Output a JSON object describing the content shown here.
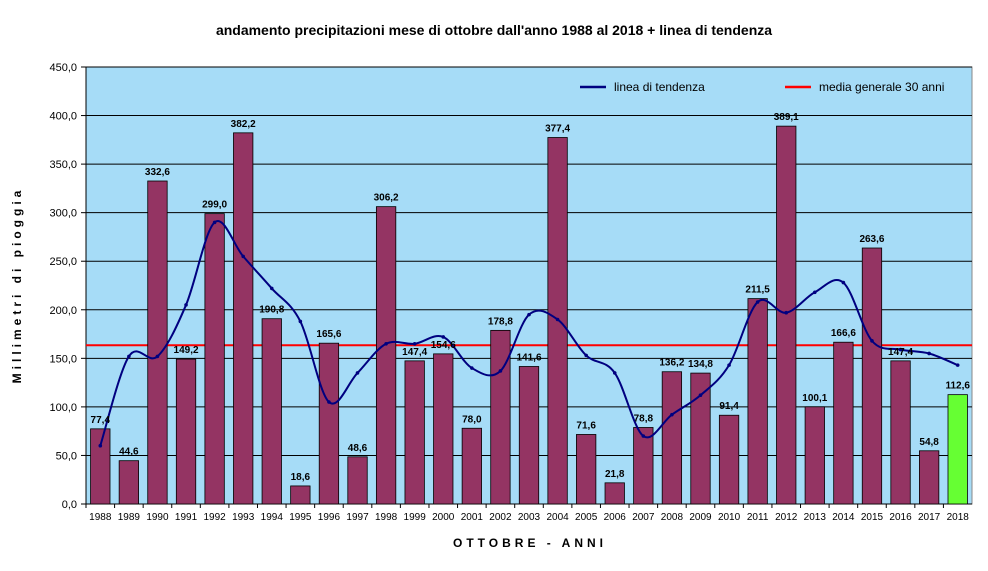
{
  "chart_data": {
    "type": "bar",
    "title": "andamento precipitazioni mese di ottobre dall'anno 1988 al 2018 + linea di tendenza",
    "xlabel": "OTTOBRE - ANNI",
    "ylabel": "Millimetri di pioggia",
    "ylim": [
      0,
      450
    ],
    "yticks": [
      "0,0",
      "50,0",
      "100,0",
      "150,0",
      "200,0",
      "250,0",
      "300,0",
      "350,0",
      "400,0",
      "450,0"
    ],
    "grid": true,
    "legend_position": "top-right",
    "categories": [
      "1988",
      "1989",
      "1990",
      "1991",
      "1992",
      "1993",
      "1994",
      "1995",
      "1996",
      "1997",
      "1998",
      "1999",
      "2000",
      "2001",
      "2002",
      "2003",
      "2004",
      "2005",
      "2006",
      "2007",
      "2008",
      "2009",
      "2010",
      "2011",
      "2012",
      "2013",
      "2014",
      "2015",
      "2016",
      "2017",
      "2018"
    ],
    "values": [
      77.4,
      44.6,
      332.6,
      149.2,
      299.0,
      382.2,
      190.8,
      18.6,
      165.6,
      48.6,
      306.2,
      147.4,
      154.6,
      78.0,
      178.8,
      141.6,
      377.4,
      71.6,
      21.8,
      78.8,
      136.2,
      134.8,
      91.4,
      211.5,
      389.1,
      100.1,
      166.6,
      263.6,
      147.4,
      54.8,
      112.6
    ],
    "data_labels": [
      "77,4",
      "44,6",
      "332,6",
      "149,2",
      "299,0",
      "382,2",
      "190,8",
      "18,6",
      "165,6",
      "48,6",
      "306,2",
      "147,4",
      "154,6",
      "78,0",
      "178,8",
      "141,6",
      "377,4",
      "71,6",
      "21,8",
      "78,8",
      "136,2",
      "134,8",
      "91,4",
      "211,5",
      "389,1",
      "100,1",
      "166,6",
      "263,6",
      "147,4",
      "54,8",
      "112,6"
    ],
    "trend_line": {
      "name": "linea di tendenza",
      "values": [
        60,
        152,
        152,
        205,
        290,
        255,
        222,
        188,
        105,
        135,
        165,
        165,
        172,
        140,
        137,
        195,
        190,
        153,
        135,
        70,
        92,
        112,
        143,
        208,
        197,
        218,
        228,
        168,
        159,
        155,
        143
      ]
    },
    "mean_line": {
      "name": "media generale 30 anni",
      "value": 163.5
    },
    "colors": {
      "plot_background": "#a6dcf7",
      "bar": "#943463",
      "highlight_bar": "#66ff33",
      "trend_line": "#000080",
      "mean_line": "#ff0000",
      "gridline": "#000000"
    },
    "highlight_index": 30
  }
}
